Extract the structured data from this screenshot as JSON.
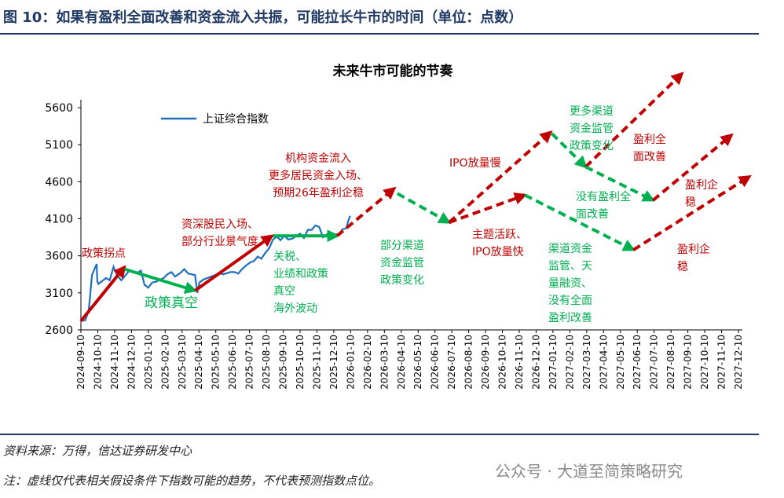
{
  "figure_title": "图 10：如果有盈利全面改善和资金流入共振，可能拉长牛市的时间（单位：点数）",
  "source": "资料来源：万得，信达证券研发中心",
  "note": "注：虚线仅代表相关假设条件下指数可能的趋势，不代表预测指数点位。",
  "watermark": "公众号 · 大道至简策略研究",
  "colors": {
    "index_line": "#1f6fc1",
    "up": "#c00000",
    "down": "#00b050",
    "title": "#1f3864"
  },
  "chart_data": {
    "type": "line",
    "title": "未来牛市可能的节奏",
    "ylim": [
      2600,
      5600
    ],
    "yticks": [
      "2600",
      "3100",
      "3600",
      "4100",
      "4600",
      "5100",
      "5600"
    ],
    "xticks": [
      "2024-09-10",
      "2024-10-10",
      "2024-11-10",
      "2024-12-10",
      "2025-01-10",
      "2025-02-10",
      "2025-03-10",
      "2025-04-10",
      "2025-05-10",
      "2025-06-10",
      "2025-07-10",
      "2025-08-10",
      "2025-09-10",
      "2025-10-10",
      "2025-11-10",
      "2025-12-10",
      "2026-01-10",
      "2026-02-10",
      "2026-03-10",
      "2026-04-10",
      "2026-05-10",
      "2026-06-10",
      "2026-07-10",
      "2026-08-10",
      "2026-09-10",
      "2026-10-10",
      "2026-11-10",
      "2026-12-10",
      "2027-01-10",
      "2027-02-10",
      "2027-03-10",
      "2027-04-10",
      "2027-05-10",
      "2027-06-10",
      "2027-07-10",
      "2027-08-10",
      "2027-09-10",
      "2027-10-10",
      "2027-11-10",
      "2027-12-10"
    ],
    "legend": "上证综合指数",
    "series": [
      {
        "name": "上证综合指数",
        "x": [
          "2024-09-10",
          "2024-09-18",
          "2024-09-24",
          "2024-09-27",
          "2024-09-30",
          "2024-10-08",
          "2024-10-09",
          "2024-10-11",
          "2024-10-18",
          "2024-10-25",
          "2024-11-01",
          "2024-11-08",
          "2024-11-15",
          "2024-11-22",
          "2024-11-29",
          "2024-12-06",
          "2024-12-13",
          "2024-12-20",
          "2024-12-27",
          "2025-01-03",
          "2025-01-10",
          "2025-01-17",
          "2025-01-24",
          "2025-02-07",
          "2025-02-14",
          "2025-02-21",
          "2025-02-28",
          "2025-03-07",
          "2025-03-14",
          "2025-03-21",
          "2025-03-28",
          "2025-04-03",
          "2025-04-07",
          "2025-04-11",
          "2025-04-18",
          "2025-04-25",
          "2025-05-09",
          "2025-05-16",
          "2025-05-23",
          "2025-06-06",
          "2025-06-13",
          "2025-06-20",
          "2025-06-27",
          "2025-07-04",
          "2025-07-11",
          "2025-07-18",
          "2025-07-25",
          "2025-08-01",
          "2025-08-08",
          "2025-08-15",
          "2025-08-22",
          "2025-08-29",
          "2025-09-05",
          "2025-09-12",
          "2025-09-19",
          "2025-09-26",
          "2025-10-10",
          "2025-10-17",
          "2025-10-24",
          "2025-10-31",
          "2025-11-07",
          "2025-11-14",
          "2025-11-21",
          "2025-11-28",
          "2025-12-05",
          "2025-12-12",
          "2025-12-19",
          "2025-12-26",
          "2026-01-02",
          "2026-01-06",
          "2026-01-09"
        ],
        "values": [
          2720,
          2730,
          2860,
          3090,
          3340,
          3490,
          3260,
          3220,
          3260,
          3300,
          3270,
          3450,
          3330,
          3270,
          3330,
          3400,
          3390,
          3370,
          3400,
          3210,
          3170,
          3240,
          3250,
          3300,
          3350,
          3380,
          3320,
          3370,
          3420,
          3360,
          3350,
          3340,
          3100,
          3240,
          3280,
          3300,
          3340,
          3370,
          3350,
          3380,
          3380,
          3360,
          3420,
          3470,
          3510,
          3530,
          3590,
          3560,
          3640,
          3700,
          3820,
          3860,
          3810,
          3870,
          3820,
          3830,
          3900,
          3840,
          3950,
          3950,
          4010,
          3990,
          3850,
          3890,
          3900,
          3890,
          3890,
          3960,
          3970,
          4080,
          4140
        ]
      }
    ],
    "scenario_arrows": [
      {
        "style": "solid",
        "trend": "up",
        "from": [
          "2024-09-10",
          2720
        ],
        "to": [
          "2024-11-28",
          3450
        ]
      },
      {
        "style": "solid",
        "trend": "down",
        "from": [
          "2024-11-28",
          3420
        ],
        "to": [
          "2025-04-03",
          3130
        ]
      },
      {
        "style": "solid",
        "trend": "up",
        "from": [
          "2025-04-03",
          3130
        ],
        "to": [
          "2025-08-20",
          3870
        ]
      },
      {
        "style": "solid",
        "trend": "down",
        "from": [
          "2025-08-22",
          3870
        ],
        "to": [
          "2025-12-16",
          3870
        ]
      },
      {
        "style": "dashed",
        "trend": "up",
        "from": [
          "2025-12-16",
          3870
        ],
        "to": [
          "2026-03-28",
          4510
        ]
      },
      {
        "style": "dashed",
        "trend": "down",
        "from": [
          "2026-04-03",
          4440
        ],
        "to": [
          "2026-07-05",
          4050
        ]
      },
      {
        "style": "dashed",
        "trend": "up",
        "from": [
          "2026-07-05",
          4050
        ],
        "to": [
          "2027-01-06",
          5270
        ]
      },
      {
        "style": "dashed",
        "trend": "up",
        "from": [
          "2026-07-05",
          4050
        ],
        "to": [
          "2026-11-20",
          4420
        ]
      },
      {
        "style": "dashed",
        "trend": "down",
        "from": [
          "2027-01-08",
          5250
        ],
        "to": [
          "2027-03-08",
          4800
        ]
      },
      {
        "style": "dashed",
        "trend": "up",
        "from": [
          "2027-03-08",
          4800
        ],
        "to": [
          "2027-08-30",
          6060
        ]
      },
      {
        "style": "dashed",
        "trend": "down",
        "from": [
          "2027-03-08",
          4800
        ],
        "to": [
          "2027-07-08",
          4350
        ]
      },
      {
        "style": "dashed",
        "trend": "up",
        "from": [
          "2027-07-08",
          4350
        ],
        "to": [
          "2027-11-28",
          5230
        ]
      },
      {
        "style": "dashed",
        "trend": "down",
        "from": [
          "2026-11-20",
          4420
        ],
        "to": [
          "2027-06-03",
          3680
        ]
      },
      {
        "style": "dashed",
        "trend": "up",
        "from": [
          "2027-06-03",
          3680
        ],
        "to": [
          "2027-12-30",
          4670
        ]
      }
    ],
    "annotations": {
      "policy_turn": [
        "政策拐点"
      ],
      "investors_enter": [
        "资深股民入场、",
        "部分行业景气度"
      ],
      "institution_inflow": [
        "机构资金流入",
        "更多居民资金入场、",
        "预期26年盈利企稳"
      ],
      "policy_vacuum": [
        "政策真空"
      ],
      "tariff": [
        "关税、",
        "业绩和政策",
        "真空",
        "海外波动"
      ],
      "partial_channels": [
        "部分渠道",
        "资金监管",
        "政策变化"
      ],
      "ipo_slow": [
        "IPO放量慢"
      ],
      "theme_active": [
        "主题活跃、",
        "IPO放量快"
      ],
      "more_channels": [
        "更多渠道",
        "资金监管",
        "政策变化"
      ],
      "profit_full_1": [
        "盈利全",
        "面改善"
      ],
      "no_profit_full": [
        "没有盈利全",
        "面改善"
      ],
      "profit_stable_1": [
        "盈利企",
        "稳"
      ],
      "channel_financing": [
        "渠道资金",
        "监管、天",
        "量融资、",
        "没有全面",
        "盈利改善"
      ],
      "profit_stable_2": [
        "盈利企",
        "稳"
      ]
    }
  }
}
